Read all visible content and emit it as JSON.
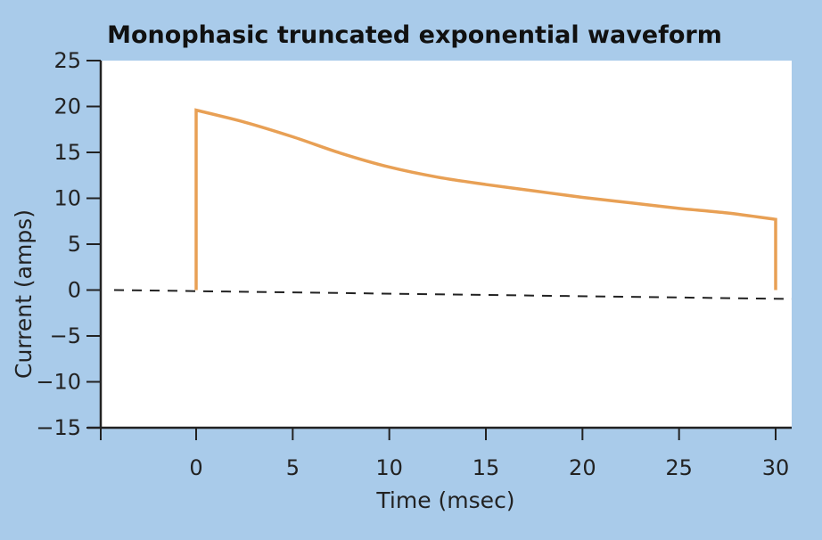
{
  "chart_data": {
    "type": "line",
    "title": "Monophasic truncated exponential waveform",
    "xlabel": "Time (msec)",
    "ylabel": "Current (amps)",
    "xlim": [
      -5,
      30
    ],
    "ylim": [
      -15,
      25
    ],
    "xticks": [
      0,
      5,
      10,
      15,
      20,
      25,
      30
    ],
    "yticks": [
      25,
      20,
      15,
      10,
      5,
      0,
      -5,
      -10,
      -15
    ],
    "xtick_labels": [
      "0",
      "5",
      "10",
      "15",
      "20",
      "25",
      "30"
    ],
    "ytick_labels": [
      "25",
      "20",
      "15",
      "10",
      "5",
      "0",
      "−5",
      "−10",
      "−15"
    ],
    "grid": false,
    "legend": "none",
    "series": [
      {
        "color": "#e8a055",
        "x": [
          0,
          0,
          2.5,
          5,
          7.5,
          10,
          12.5,
          15,
          17.5,
          20,
          22.5,
          25,
          27.5,
          30,
          30
        ],
        "y": [
          0,
          19.6,
          18.3,
          16.7,
          14.9,
          13.4,
          12.3,
          11.5,
          10.8,
          10.1,
          9.5,
          8.9,
          8.4,
          7.7,
          0
        ]
      }
    ],
    "reference_line": {
      "style": "dashed",
      "color": "#222222",
      "y": 0
    }
  }
}
